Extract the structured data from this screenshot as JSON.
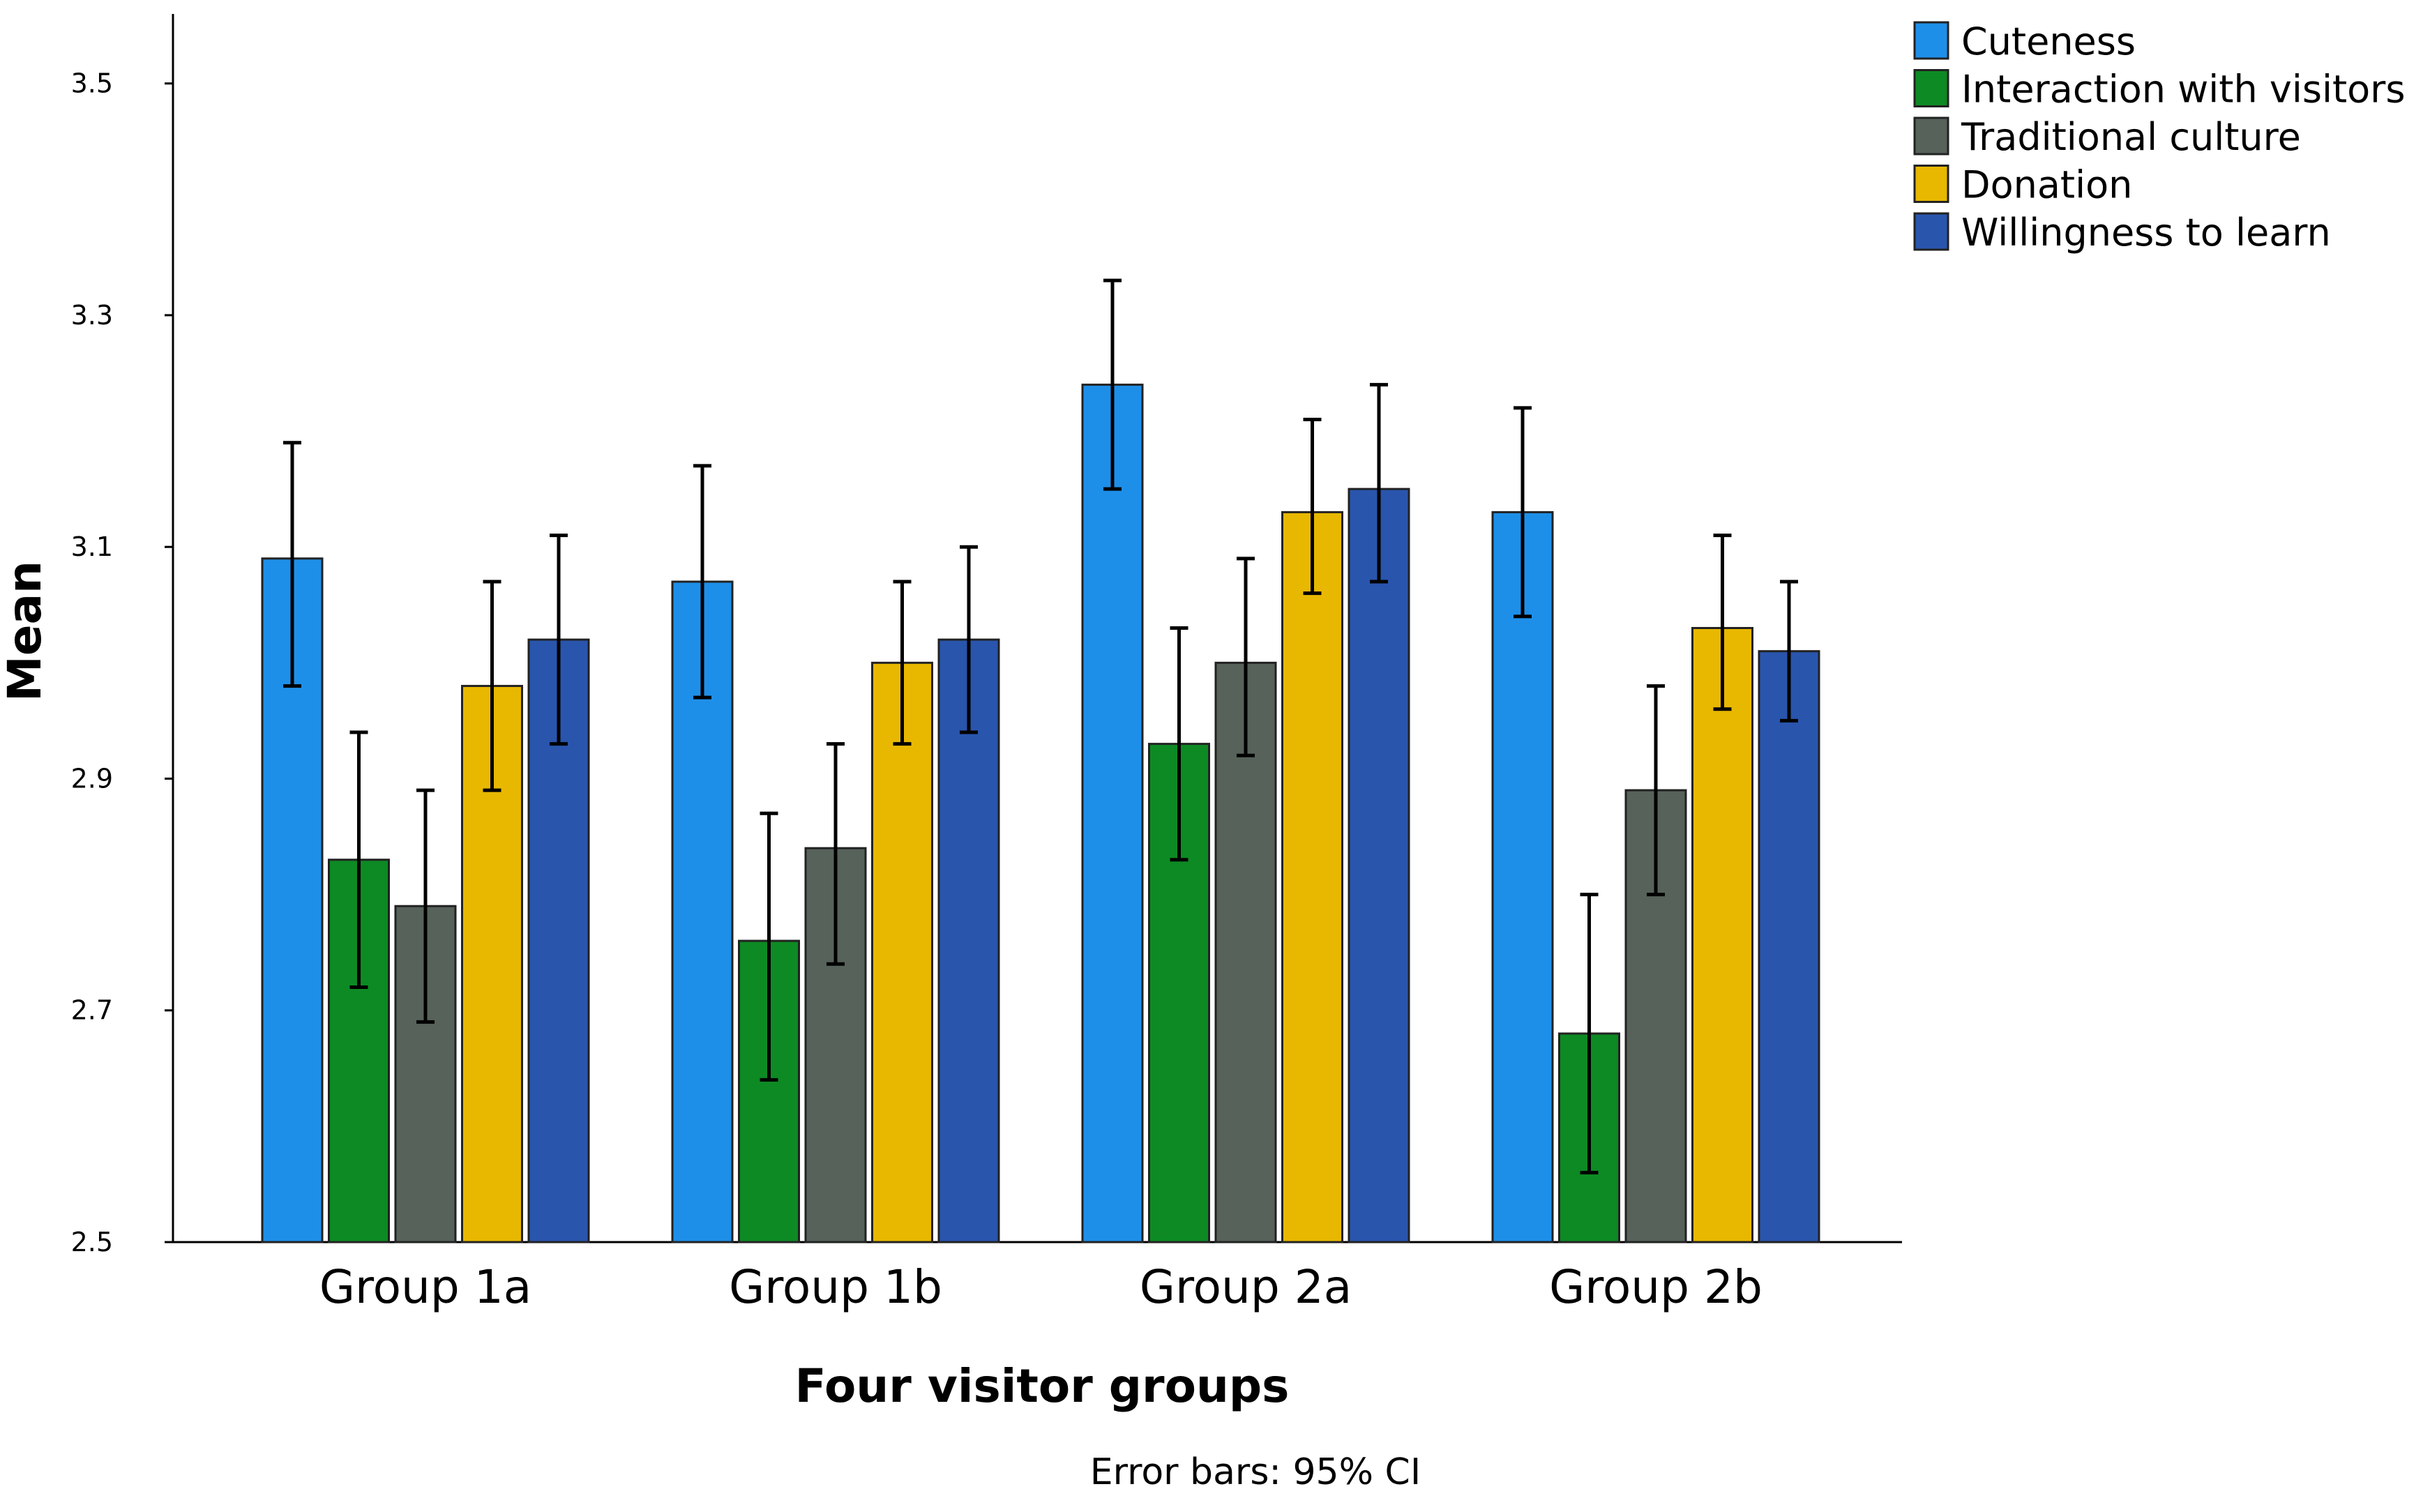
{
  "chart_data": {
    "type": "bar",
    "title": "",
    "xlabel": "Four visitor groups",
    "ylabel": "Mean",
    "note": "Error bars: 95% CI",
    "ylim": [
      2.5,
      3.56
    ],
    "yticks": [
      2.5,
      2.7,
      2.9,
      3.1,
      3.3,
      3.5
    ],
    "ytick_labels": [
      "2.5",
      "2.7",
      "2.9",
      "3.1",
      "3.3",
      "3.5"
    ],
    "categories": [
      "Group 1a",
      "Group 1b",
      "Group 2a",
      "Group 2b"
    ],
    "legend_position": "top-right",
    "series": [
      {
        "name": "Cuteness",
        "color": "#1e8fe8",
        "values": [
          3.09,
          3.07,
          3.24,
          3.13
        ],
        "ci_low": [
          2.98,
          2.97,
          3.15,
          3.04
        ],
        "ci_high": [
          3.19,
          3.17,
          3.33,
          3.22
        ]
      },
      {
        "name": "Interaction with visitors",
        "color": "#0d8a24",
        "values": [
          2.83,
          2.76,
          2.93,
          2.68
        ],
        "ci_low": [
          2.72,
          2.64,
          2.83,
          2.56
        ],
        "ci_high": [
          2.94,
          2.87,
          3.03,
          2.8
        ]
      },
      {
        "name": "Traditional culture",
        "color": "#56625a",
        "values": [
          2.79,
          2.84,
          3.0,
          2.89
        ],
        "ci_low": [
          2.69,
          2.74,
          2.92,
          2.8
        ],
        "ci_high": [
          2.89,
          2.93,
          3.09,
          2.98
        ]
      },
      {
        "name": "Donation",
        "color": "#e8b800",
        "values": [
          2.98,
          3.0,
          3.13,
          3.03
        ],
        "ci_low": [
          2.89,
          2.93,
          3.06,
          2.96
        ],
        "ci_high": [
          3.07,
          3.07,
          3.21,
          3.11
        ]
      },
      {
        "name": "Willingness to learn",
        "color": "#2955ad",
        "values": [
          3.02,
          3.02,
          3.15,
          3.01
        ],
        "ci_low": [
          2.93,
          2.94,
          3.07,
          2.95
        ],
        "ci_high": [
          3.11,
          3.1,
          3.24,
          3.07
        ]
      }
    ]
  }
}
